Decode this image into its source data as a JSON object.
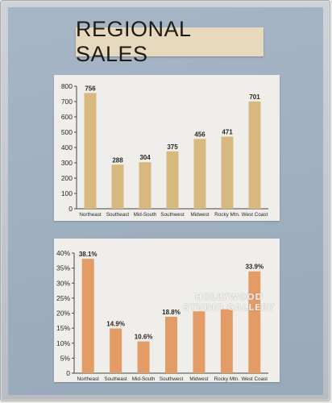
{
  "title": "REGIONAL SALES",
  "watermark": [
    "HOLLYWOOD",
    "STUDIO GALLERY"
  ],
  "colors": {
    "chart1_bar": "#d7b97f",
    "chart2_bar": "#e49c67",
    "axis": "#4a4640",
    "text": "#2a2622"
  },
  "chart_data": [
    {
      "type": "bar",
      "title": "",
      "xlabel": "",
      "ylabel": "",
      "categories": [
        "Northeast",
        "Southeast",
        "Mid-South",
        "Southwest",
        "Midwest",
        "Rocky Mtn.",
        "West Coast"
      ],
      "values": [
        756,
        288,
        304,
        375,
        456,
        471,
        701
      ],
      "data_labels": [
        "756",
        "288",
        "304",
        "375",
        "456",
        "471",
        "701"
      ],
      "ylim": [
        0,
        800
      ],
      "yticks": [
        0,
        100,
        200,
        300,
        400,
        500,
        600,
        700,
        800
      ],
      "ytick_labels": [
        "0",
        "100",
        "200",
        "300",
        "400",
        "500",
        "600",
        "700",
        "800"
      ],
      "grid": false,
      "legend": "none"
    },
    {
      "type": "bar",
      "title": "",
      "xlabel": "",
      "ylabel": "",
      "categories": [
        "Northeast",
        "Southeast",
        "Mid-South",
        "Southwest",
        "Midwest",
        "Rocky Mtn.",
        "West Coast"
      ],
      "values": [
        38.1,
        14.9,
        10.6,
        18.8,
        20.6,
        21.3,
        33.9
      ],
      "data_labels": [
        "38.1%",
        "14.9%",
        "10.6%",
        "18.8%",
        "",
        "",
        "33.9%"
      ],
      "ylim": [
        0,
        40
      ],
      "yticks": [
        0,
        5,
        10,
        15,
        20,
        25,
        30,
        35,
        40
      ],
      "ytick_labels": [
        "0",
        "5%",
        "10%",
        "15%",
        "20%",
        "25%",
        "30%",
        "35%",
        "40%"
      ],
      "grid": false,
      "legend": "none"
    }
  ]
}
